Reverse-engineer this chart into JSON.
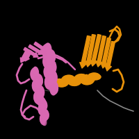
{
  "background_color": "#000000",
  "figsize": [
    2.0,
    2.0
  ],
  "dpi": 100,
  "orange_color": "#E8920A",
  "pink_color": "#D968B2",
  "dark_color": "#3A3A3A",
  "gray_color": "#888888",
  "orange_dark": "#C07010",
  "pink_dark": "#A04488"
}
